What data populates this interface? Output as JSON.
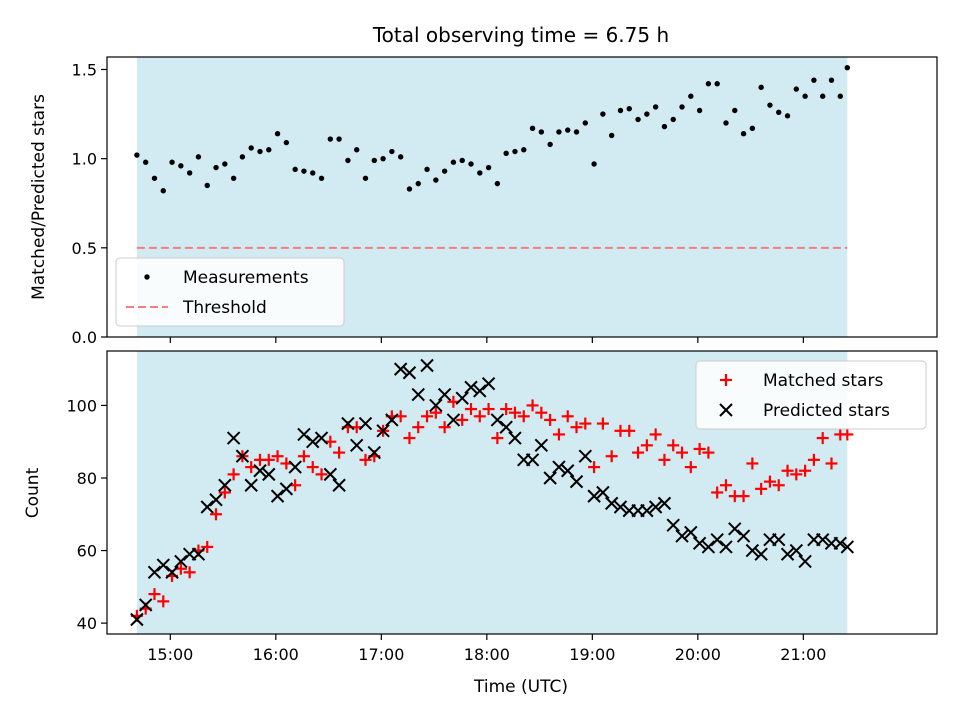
{
  "chart_data": [
    {
      "type": "scatter",
      "title": "Total observing time = 6.75 h",
      "ylabel": "Matched/Predicted stars",
      "xlabel": "",
      "ylim": [
        0.0,
        1.57
      ],
      "yticks": [
        0.0,
        0.5,
        1.0,
        1.5
      ],
      "ytick_labels": [
        "0.0",
        "0.5",
        "1.0",
        "1.5"
      ],
      "xlim": [
        "14:24",
        "22:16"
      ],
      "xticks": [
        "15:00",
        "16:00",
        "17:00",
        "18:00",
        "19:00",
        "20:00",
        "21:00"
      ],
      "observing_window": [
        "14:41",
        "21:25"
      ],
      "shading_color": "#add8e6",
      "legend_position": "lower left",
      "series": [
        {
          "name": "Measurements",
          "kind": "points",
          "color": "#000000",
          "x": [
            "14:41",
            "14:46",
            "14:51",
            "14:56",
            "15:01",
            "15:06",
            "15:11",
            "15:16",
            "15:21",
            "15:26",
            "15:31",
            "15:36",
            "15:41",
            "15:46",
            "15:51",
            "15:56",
            "16:01",
            "16:06",
            "16:11",
            "16:16",
            "16:21",
            "16:26",
            "16:31",
            "16:36",
            "16:41",
            "16:46",
            "16:51",
            "16:56",
            "17:01",
            "17:06",
            "17:11",
            "17:16",
            "17:21",
            "17:26",
            "17:31",
            "17:36",
            "17:41",
            "17:46",
            "17:51",
            "17:56",
            "18:01",
            "18:06",
            "18:11",
            "18:16",
            "18:21",
            "18:26",
            "18:31",
            "18:36",
            "18:41",
            "18:46",
            "18:51",
            "18:56",
            "19:01",
            "19:06",
            "19:11",
            "19:16",
            "19:21",
            "19:26",
            "19:31",
            "19:36",
            "19:41",
            "19:46",
            "19:51",
            "19:56",
            "20:01",
            "20:06",
            "20:11",
            "20:16",
            "20:21",
            "20:26",
            "20:31",
            "20:36",
            "20:41",
            "20:46",
            "20:51",
            "20:56",
            "21:01",
            "21:06",
            "21:11",
            "21:16",
            "21:21",
            "21:25"
          ],
          "y": [
            1.02,
            0.98,
            0.89,
            0.82,
            0.98,
            0.96,
            0.92,
            1.01,
            0.85,
            0.95,
            0.97,
            0.89,
            1.01,
            1.06,
            1.04,
            1.05,
            1.14,
            1.09,
            0.94,
            0.93,
            0.92,
            0.89,
            1.11,
            1.11,
            0.99,
            1.05,
            0.89,
            0.99,
            1.0,
            1.04,
            1.01,
            0.83,
            0.86,
            0.94,
            0.88,
            0.93,
            0.98,
            0.99,
            0.97,
            0.92,
            0.95,
            0.86,
            1.03,
            1.04,
            1.05,
            1.17,
            1.15,
            1.08,
            1.15,
            1.16,
            1.15,
            1.2,
            0.97,
            1.25,
            1.13,
            1.27,
            1.28,
            1.22,
            1.25,
            1.29,
            1.18,
            1.22,
            1.29,
            1.35,
            1.27,
            1.42,
            1.42,
            1.2,
            1.27,
            1.14,
            1.17,
            1.4,
            1.3,
            1.26,
            1.24,
            1.39,
            1.35,
            1.44,
            1.35,
            1.44,
            1.35,
            1.51
          ]
        },
        {
          "name": "Threshold",
          "kind": "dashed-line",
          "color": "#f08080",
          "y": 0.5
        }
      ]
    },
    {
      "type": "scatter",
      "title": "",
      "ylabel": "Count",
      "xlabel": "Time (UTC)",
      "ylim": [
        37,
        115
      ],
      "yticks": [
        40,
        60,
        80,
        100
      ],
      "ytick_labels": [
        "40",
        "60",
        "80",
        "100"
      ],
      "xlim": [
        "14:24",
        "22:16"
      ],
      "xticks": [
        "15:00",
        "16:00",
        "17:00",
        "18:00",
        "19:00",
        "20:00",
        "21:00"
      ],
      "xtick_labels": [
        "15:00",
        "16:00",
        "17:00",
        "18:00",
        "19:00",
        "20:00",
        "21:00"
      ],
      "observing_window": [
        "14:41",
        "21:25"
      ],
      "shading_color": "#add8e6",
      "legend_position": "upper right",
      "series": [
        {
          "name": "Matched stars",
          "marker": "+",
          "color": "#ff0000",
          "x": [
            "14:41",
            "14:46",
            "14:51",
            "14:56",
            "15:01",
            "15:06",
            "15:11",
            "15:16",
            "15:21",
            "15:26",
            "15:31",
            "15:36",
            "15:41",
            "15:46",
            "15:51",
            "15:56",
            "16:01",
            "16:06",
            "16:11",
            "16:16",
            "16:21",
            "16:26",
            "16:31",
            "16:36",
            "16:41",
            "16:46",
            "16:51",
            "16:56",
            "17:01",
            "17:06",
            "17:11",
            "17:16",
            "17:21",
            "17:26",
            "17:31",
            "17:36",
            "17:41",
            "17:46",
            "17:51",
            "17:56",
            "18:01",
            "18:06",
            "18:11",
            "18:16",
            "18:21",
            "18:26",
            "18:31",
            "18:36",
            "18:41",
            "18:46",
            "18:51",
            "18:56",
            "19:01",
            "19:06",
            "19:11",
            "19:16",
            "19:21",
            "19:26",
            "19:31",
            "19:36",
            "19:41",
            "19:46",
            "19:51",
            "19:56",
            "20:01",
            "20:06",
            "20:11",
            "20:16",
            "20:21",
            "20:26",
            "20:31",
            "20:36",
            "20:41",
            "20:46",
            "20:51",
            "20:56",
            "21:01",
            "21:06",
            "21:11",
            "21:16",
            "21:21",
            "21:25"
          ],
          "y": [
            42,
            44,
            48,
            46,
            53,
            55,
            54,
            60,
            61,
            70,
            76,
            81,
            86,
            83,
            85,
            85,
            86,
            84,
            78,
            86,
            83,
            81,
            90,
            87,
            94,
            94,
            85,
            86,
            93,
            97,
            97,
            91,
            94,
            97,
            98,
            94,
            101,
            96,
            99,
            97,
            99,
            91,
            99,
            98,
            97,
            100,
            98,
            96,
            92,
            97,
            94,
            95,
            83,
            95,
            86,
            93,
            93,
            87,
            89,
            92,
            85,
            89,
            87,
            83,
            88,
            87,
            76,
            78,
            75,
            75,
            84,
            77,
            79,
            78,
            82,
            81,
            82,
            85,
            91,
            84,
            92,
            92
          ]
        },
        {
          "name": "Predicted stars",
          "marker": "x",
          "color": "#000000",
          "x": [
            "14:41",
            "14:46",
            "14:51",
            "14:56",
            "15:01",
            "15:06",
            "15:11",
            "15:16",
            "15:21",
            "15:26",
            "15:31",
            "15:36",
            "15:41",
            "15:46",
            "15:51",
            "15:56",
            "16:01",
            "16:06",
            "16:11",
            "16:16",
            "16:21",
            "16:26",
            "16:31",
            "16:36",
            "16:41",
            "16:46",
            "16:51",
            "16:56",
            "17:01",
            "17:06",
            "17:11",
            "17:16",
            "17:21",
            "17:26",
            "17:31",
            "17:36",
            "17:41",
            "17:46",
            "17:51",
            "17:56",
            "18:01",
            "18:06",
            "18:11",
            "18:16",
            "18:21",
            "18:26",
            "18:31",
            "18:36",
            "18:41",
            "18:46",
            "18:51",
            "18:56",
            "19:01",
            "19:06",
            "19:11",
            "19:16",
            "19:21",
            "19:26",
            "19:31",
            "19:36",
            "19:41",
            "19:46",
            "19:51",
            "19:56",
            "20:01",
            "20:06",
            "20:11",
            "20:16",
            "20:21",
            "20:26",
            "20:31",
            "20:36",
            "20:41",
            "20:46",
            "20:51",
            "20:56",
            "21:01",
            "21:06",
            "21:11",
            "21:16",
            "21:21",
            "21:25"
          ],
          "y": [
            41,
            45,
            54,
            56,
            54,
            57,
            59,
            59,
            72,
            74,
            78,
            91,
            86,
            78,
            82,
            81,
            75,
            77,
            83,
            92,
            90,
            91,
            81,
            78,
            95,
            89,
            95,
            87,
            93,
            96,
            110,
            109,
            103,
            111,
            100,
            103,
            96,
            102,
            105,
            104,
            106,
            96,
            94,
            91,
            85,
            85,
            89,
            80,
            83,
            82,
            79,
            86,
            75,
            76,
            73,
            72,
            71,
            71,
            71,
            72,
            73,
            67,
            64,
            65,
            62,
            61,
            63,
            61,
            66,
            64,
            60,
            59,
            63,
            63,
            59,
            60,
            57,
            63,
            63,
            62,
            62,
            61
          ]
        }
      ]
    }
  ]
}
